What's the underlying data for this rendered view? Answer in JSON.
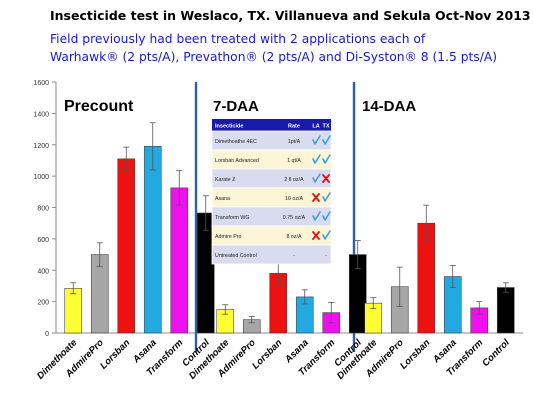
{
  "header": {
    "title": "Insecticide test in Weslaco, TX. Villanueva and Sekula Oct-Nov 2013",
    "subtitle_line1": "Field previously had been treated with 2 applications each of",
    "subtitle_line2": "Warhawk® (2 pts/A), Prevathon® (2 pts/A) and Di-Syston® 8 (1.5 pts/A)"
  },
  "chart_data": {
    "type": "bar",
    "ylim": [
      0,
      1600
    ],
    "yticks": [
      0,
      200,
      400,
      600,
      800,
      1000,
      1200,
      1400,
      1600
    ],
    "grid": false,
    "categories": [
      "Dimethoate",
      "AdmirePro",
      "Lorsban",
      "Asana",
      "Transform",
      "Control"
    ],
    "colors": [
      "#ffff33",
      "#a6a6a6",
      "#ee1111",
      "#21a9e0",
      "#ee11ee",
      "#000000"
    ],
    "panels": [
      {
        "name": "Precount",
        "values": [
          285,
          500,
          1110,
          1190,
          925,
          765
        ],
        "errors": [
          35,
          75,
          75,
          150,
          110,
          110
        ]
      },
      {
        "name": "7-DAA",
        "values": [
          150,
          85,
          380,
          230,
          130,
          500
        ],
        "errors": [
          30,
          20,
          75,
          45,
          65,
          90
        ]
      },
      {
        "name": "14-DAA",
        "values": [
          190,
          295,
          700,
          360,
          160,
          290
        ],
        "errors": [
          35,
          125,
          115,
          70,
          40,
          30
        ]
      }
    ]
  },
  "table": {
    "headers": [
      "Insecticide",
      "Rate",
      "LA",
      "TX"
    ],
    "rows": [
      {
        "name": "Dimethoathe 4EC",
        "rate": "1pt/A",
        "la": "check",
        "tx": "check"
      },
      {
        "name": "Lorsban Advanced",
        "rate": "1 qt/A",
        "la": "check",
        "tx": "check"
      },
      {
        "name": "Karate Z",
        "rate": "2 fl oz/A",
        "la": "check",
        "tx": "cross"
      },
      {
        "name": "Asana",
        "rate": "10 oz/A",
        "la": "cross",
        "tx": "check"
      },
      {
        "name": "Transform WG",
        "rate": "0.75 oz/A",
        "la": "check",
        "tx": "check"
      },
      {
        "name": "Admire Pro",
        "rate": "8 oz/A",
        "la": "cross",
        "tx": "check"
      },
      {
        "name": "Untreated Control",
        "rate": "-",
        "la": "",
        "tx": "-"
      }
    ],
    "colors": {
      "header": "#1a1aa8",
      "row_a": "#d9dcef",
      "row_b": "#fbf4d5",
      "check": "#3aa0e0",
      "cross": "#e01010"
    }
  }
}
